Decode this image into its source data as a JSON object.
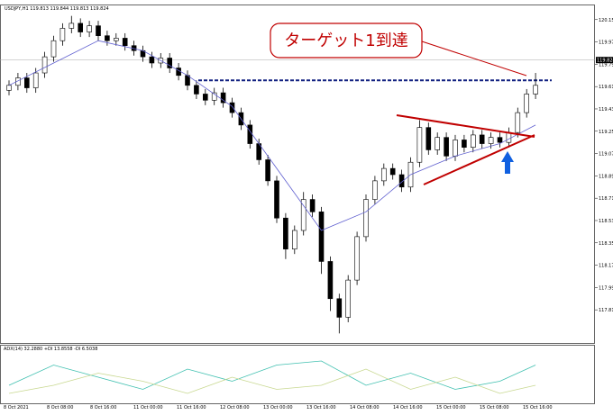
{
  "chart_data": {
    "type": "candlestick",
    "title": "USDJPY,H1 119.813 119.844 119.813 119.824",
    "annotation": "ターゲット1到達",
    "indicator_title": "ADX(14) 32.2880 +DI 13.8558 -DI 6.5038",
    "ylim": [
      117.55,
      120.25
    ],
    "yticks": [
      {
        "value": 120.15,
        "label": "120.150"
      },
      {
        "value": 119.97,
        "label": "119.970"
      },
      {
        "value": 119.79,
        "label": "119.790"
      },
      {
        "value": 119.61,
        "label": "119.610"
      },
      {
        "value": 119.43,
        "label": "119.430"
      },
      {
        "value": 119.25,
        "label": "119.250"
      },
      {
        "value": 119.07,
        "label": "119.070"
      },
      {
        "value": 118.89,
        "label": "118.890"
      },
      {
        "value": 118.71,
        "label": "118.710"
      },
      {
        "value": 118.53,
        "label": "118.530"
      },
      {
        "value": 118.35,
        "label": "118.350"
      },
      {
        "value": 118.17,
        "label": "118.170"
      },
      {
        "value": 117.99,
        "label": "117.990"
      },
      {
        "value": 117.81,
        "label": "117.810"
      }
    ],
    "current_price": {
      "value": 119.824,
      "label": "119.824"
    },
    "target_level": 119.66,
    "x_labels": [
      "8 Oct 2021",
      "8 Oct 08:00",
      "8 Oct 16:00",
      "11 Oct 00:00",
      "11 Oct 16:00",
      "12 Oct 08:00",
      "13 Oct 00:00",
      "13 Oct 16:00",
      "14 Oct 08:00",
      "14 Oct 16:00",
      "15 Oct 00:00",
      "15 Oct 08:00",
      "15 Oct 16:00"
    ],
    "open": [
      119.58,
      119.62,
      119.68,
      119.6,
      119.72,
      119.85,
      119.98,
      120.08,
      120.12,
      120.05,
      120.1,
      120.02,
      119.98,
      120.0,
      119.94,
      119.9,
      119.85,
      119.8,
      119.84,
      119.76,
      119.7,
      119.62,
      119.55,
      119.5,
      119.56,
      119.48,
      119.4,
      119.3,
      119.15,
      119.02,
      118.85,
      118.55,
      118.3,
      118.45,
      118.7,
      118.6,
      118.2,
      117.9,
      117.75,
      118.05,
      118.4,
      118.7,
      118.85,
      118.95,
      118.9,
      118.8,
      119.0,
      119.28,
      119.1,
      119.2,
      119.05,
      119.18,
      119.12,
      119.22,
      119.15,
      119.2,
      119.16,
      119.24,
      119.4,
      119.55
    ],
    "close": [
      119.62,
      119.68,
      119.6,
      119.72,
      119.85,
      119.98,
      120.08,
      120.12,
      120.05,
      120.1,
      120.02,
      119.98,
      120.0,
      119.94,
      119.9,
      119.85,
      119.8,
      119.84,
      119.76,
      119.7,
      119.62,
      119.55,
      119.5,
      119.56,
      119.48,
      119.4,
      119.3,
      119.15,
      119.02,
      118.85,
      118.55,
      118.3,
      118.45,
      118.7,
      118.6,
      118.2,
      117.9,
      117.75,
      118.05,
      118.4,
      118.7,
      118.85,
      118.95,
      118.9,
      118.8,
      119.0,
      119.28,
      119.1,
      119.2,
      119.05,
      119.18,
      119.12,
      119.22,
      119.15,
      119.2,
      119.16,
      119.24,
      119.4,
      119.55,
      119.62
    ],
    "high": [
      119.66,
      119.72,
      119.72,
      119.76,
      119.89,
      120.02,
      120.12,
      120.18,
      120.16,
      120.14,
      120.14,
      120.06,
      120.04,
      120.04,
      119.98,
      119.94,
      119.89,
      119.88,
      119.88,
      119.8,
      119.74,
      119.66,
      119.59,
      119.6,
      119.6,
      119.52,
      119.44,
      119.34,
      119.19,
      119.06,
      118.89,
      118.59,
      118.49,
      118.76,
      118.74,
      118.64,
      118.24,
      117.94,
      118.09,
      118.44,
      118.74,
      118.89,
      118.99,
      118.99,
      118.94,
      119.04,
      119.34,
      119.32,
      119.24,
      119.24,
      119.22,
      119.22,
      119.26,
      119.26,
      119.24,
      119.24,
      119.28,
      119.44,
      119.59,
      119.72
    ],
    "low": [
      119.54,
      119.58,
      119.56,
      119.56,
      119.68,
      119.81,
      119.94,
      120.04,
      120.01,
      120.01,
      119.98,
      119.94,
      119.94,
      119.9,
      119.86,
      119.81,
      119.76,
      119.76,
      119.72,
      119.66,
      119.58,
      119.51,
      119.46,
      119.46,
      119.44,
      119.36,
      119.26,
      119.11,
      118.98,
      118.81,
      118.51,
      118.22,
      118.26,
      118.41,
      118.56,
      118.1,
      117.8,
      117.62,
      117.71,
      118.01,
      118.36,
      118.66,
      118.81,
      118.86,
      118.76,
      118.76,
      118.96,
      119.06,
      119.06,
      119.01,
      119.01,
      119.08,
      119.08,
      119.11,
      119.11,
      119.12,
      119.12,
      119.2,
      119.36,
      119.51
    ],
    "ma": {
      "x": [
        0,
        5,
        10,
        15,
        20,
        25,
        30,
        35,
        40,
        45,
        50,
        55,
        59
      ],
      "values": [
        119.62,
        119.8,
        119.98,
        119.9,
        119.7,
        119.45,
        118.95,
        118.45,
        118.6,
        118.9,
        119.05,
        119.15,
        119.3
      ],
      "color": "#6060d0"
    },
    "indicator": {
      "ylim": [
        0,
        60
      ],
      "x": [
        0,
        5,
        10,
        15,
        20,
        25,
        30,
        35,
        40,
        45,
        50,
        55,
        59
      ],
      "series": [
        {
          "color": "#40c0b0",
          "values": [
            20,
            45,
            30,
            15,
            40,
            25,
            45,
            50,
            20,
            35,
            15,
            25,
            45
          ]
        },
        {
          "color": "#c8d890",
          "values": [
            10,
            20,
            35,
            25,
            10,
            30,
            15,
            20,
            40,
            15,
            30,
            10,
            20
          ]
        }
      ]
    }
  }
}
